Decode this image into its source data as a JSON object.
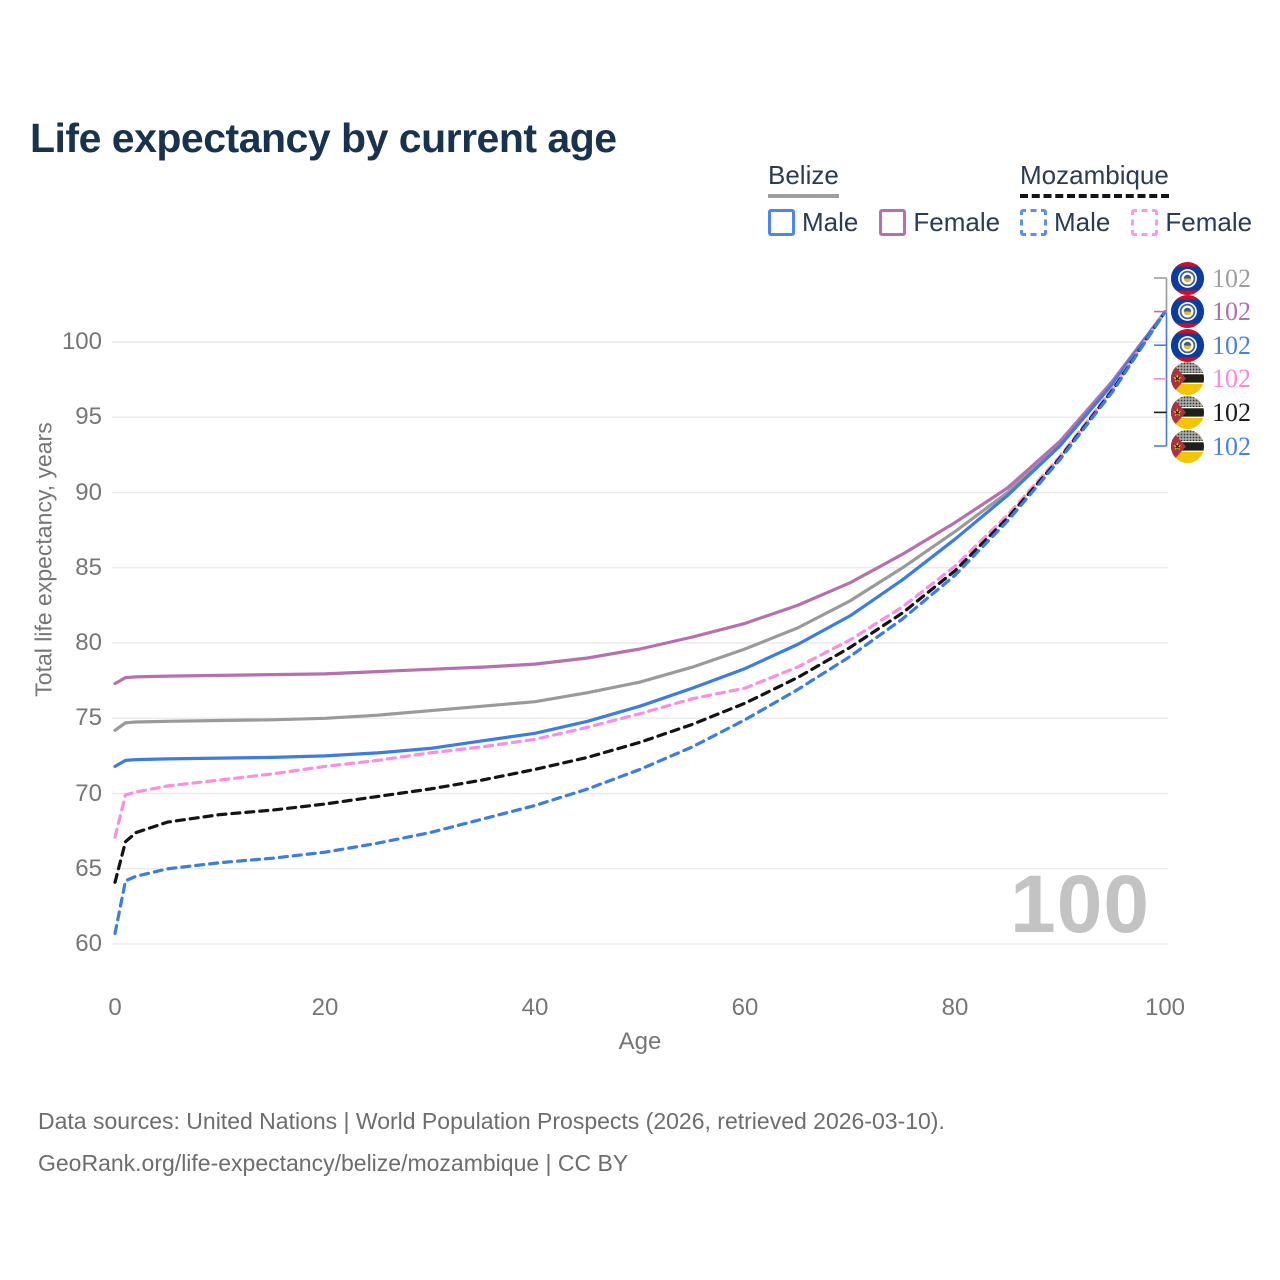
{
  "title": "Life expectancy by current age",
  "legend": {
    "groups": [
      {
        "title": "Belize",
        "underline": "solid",
        "underline_color": "#9e9e9e",
        "items": [
          {
            "label": "Male",
            "color": "#4b86e8",
            "style": "solid"
          },
          {
            "label": "Female",
            "color": "#b570ae",
            "style": "solid"
          }
        ]
      },
      {
        "title": "Mozambique",
        "underline": "dashed",
        "underline_color": "#141414",
        "items": [
          {
            "label": "Male",
            "color": "#5b8fe8",
            "style": "dashed"
          },
          {
            "label": "Female",
            "color": "#ff97e3",
            "style": "dashed"
          }
        ]
      }
    ]
  },
  "chart_data": {
    "type": "line",
    "title": "Life expectancy by current age",
    "xlabel": "Age",
    "ylabel": "Total life expectancy, years",
    "xlim": [
      0,
      100
    ],
    "ylim": [
      60,
      103
    ],
    "x_ticks": [
      0,
      20,
      40,
      60,
      80,
      100
    ],
    "y_ticks": [
      60,
      65,
      70,
      75,
      80,
      85,
      90,
      95,
      100
    ],
    "grid": "horizontal",
    "age_counter_watermark": "100",
    "series": [
      {
        "name": "Belize (both sexes)",
        "country": "Belize",
        "sex": "All",
        "color": "#9a9a9a",
        "end_label_color": "#9e9e9e",
        "line_style": "solid",
        "end_label": "102",
        "flag": "belize",
        "points": [
          [
            0,
            74.2
          ],
          [
            1,
            74.7
          ],
          [
            2,
            74.75
          ],
          [
            5,
            74.8
          ],
          [
            10,
            74.85
          ],
          [
            15,
            74.9
          ],
          [
            20,
            75.0
          ],
          [
            25,
            75.2
          ],
          [
            30,
            75.5
          ],
          [
            35,
            75.8
          ],
          [
            40,
            76.1
          ],
          [
            45,
            76.7
          ],
          [
            50,
            77.4
          ],
          [
            55,
            78.4
          ],
          [
            60,
            79.6
          ],
          [
            65,
            81.0
          ],
          [
            70,
            82.8
          ],
          [
            75,
            85.0
          ],
          [
            80,
            87.4
          ],
          [
            85,
            90.0
          ],
          [
            90,
            93.2
          ],
          [
            95,
            97.3
          ],
          [
            100,
            102
          ]
        ]
      },
      {
        "name": "Belize Female",
        "country": "Belize",
        "sex": "Female",
        "color": "#b570ae",
        "end_label_color": "#b06fb0",
        "line_style": "solid",
        "end_label": "102",
        "flag": "belize",
        "points": [
          [
            0,
            77.3
          ],
          [
            1,
            77.7
          ],
          [
            2,
            77.75
          ],
          [
            5,
            77.8
          ],
          [
            10,
            77.85
          ],
          [
            15,
            77.9
          ],
          [
            20,
            77.95
          ],
          [
            25,
            78.1
          ],
          [
            30,
            78.25
          ],
          [
            35,
            78.4
          ],
          [
            40,
            78.6
          ],
          [
            45,
            79.0
          ],
          [
            50,
            79.6
          ],
          [
            55,
            80.4
          ],
          [
            60,
            81.3
          ],
          [
            65,
            82.5
          ],
          [
            70,
            84.0
          ],
          [
            75,
            85.9
          ],
          [
            80,
            88.0
          ],
          [
            85,
            90.3
          ],
          [
            90,
            93.4
          ],
          [
            95,
            97.4
          ],
          [
            100,
            102
          ]
        ]
      },
      {
        "name": "Belize Male",
        "country": "Belize",
        "sex": "Male",
        "color": "#3d7ce0",
        "end_label_color": "#4a80e2",
        "line_style": "solid",
        "end_label": "102",
        "flag": "belize",
        "points": [
          [
            0,
            71.8
          ],
          [
            1,
            72.2
          ],
          [
            2,
            72.25
          ],
          [
            5,
            72.3
          ],
          [
            10,
            72.35
          ],
          [
            15,
            72.4
          ],
          [
            20,
            72.5
          ],
          [
            25,
            72.7
          ],
          [
            30,
            73.0
          ],
          [
            35,
            73.5
          ],
          [
            40,
            74.0
          ],
          [
            45,
            74.8
          ],
          [
            50,
            75.8
          ],
          [
            55,
            77.0
          ],
          [
            60,
            78.3
          ],
          [
            65,
            79.9
          ],
          [
            70,
            81.8
          ],
          [
            75,
            84.2
          ],
          [
            80,
            86.9
          ],
          [
            85,
            89.8
          ],
          [
            90,
            93.1
          ],
          [
            95,
            97.2
          ],
          [
            100,
            102
          ]
        ]
      },
      {
        "name": "Mozambique Female",
        "country": "Mozambique",
        "sex": "Female",
        "color": "#fb8ee0",
        "end_label_color": "#ff85dd",
        "line_style": "dashed",
        "end_label": "102",
        "flag": "mozambique",
        "points": [
          [
            0,
            67.1
          ],
          [
            1,
            69.9
          ],
          [
            2,
            70.1
          ],
          [
            5,
            70.5
          ],
          [
            10,
            70.9
          ],
          [
            15,
            71.3
          ],
          [
            20,
            71.8
          ],
          [
            25,
            72.2
          ],
          [
            30,
            72.7
          ],
          [
            35,
            73.1
          ],
          [
            40,
            73.6
          ],
          [
            45,
            74.4
          ],
          [
            50,
            75.3
          ],
          [
            55,
            76.3
          ],
          [
            60,
            77.0
          ],
          [
            65,
            78.4
          ],
          [
            70,
            80.2
          ],
          [
            75,
            82.4
          ],
          [
            80,
            85.1
          ],
          [
            85,
            88.5
          ],
          [
            90,
            92.4
          ],
          [
            95,
            96.9
          ],
          [
            100,
            102
          ]
        ]
      },
      {
        "name": "Mozambique (both sexes)",
        "country": "Mozambique",
        "sex": "All",
        "color": "#141414",
        "end_label_color": "#1a1a1a",
        "line_style": "dashed",
        "end_label": "102",
        "flag": "mozambique",
        "points": [
          [
            0,
            64.1
          ],
          [
            1,
            66.8
          ],
          [
            2,
            67.4
          ],
          [
            5,
            68.1
          ],
          [
            10,
            68.6
          ],
          [
            15,
            68.9
          ],
          [
            20,
            69.3
          ],
          [
            25,
            69.8
          ],
          [
            30,
            70.3
          ],
          [
            35,
            70.9
          ],
          [
            40,
            71.6
          ],
          [
            45,
            72.4
          ],
          [
            50,
            73.4
          ],
          [
            55,
            74.6
          ],
          [
            60,
            76.0
          ],
          [
            65,
            77.7
          ],
          [
            70,
            79.7
          ],
          [
            75,
            82.0
          ],
          [
            80,
            84.8
          ],
          [
            85,
            88.3
          ],
          [
            90,
            92.3
          ],
          [
            95,
            96.8
          ],
          [
            100,
            102
          ]
        ]
      },
      {
        "name": "Mozambique Male",
        "country": "Mozambique",
        "sex": "Male",
        "color": "#3d7ce0",
        "end_label_color": "#4a80e2",
        "line_style": "dashed",
        "end_label": "102",
        "flag": "mozambique",
        "points": [
          [
            0,
            60.7
          ],
          [
            1,
            64.2
          ],
          [
            2,
            64.5
          ],
          [
            5,
            65.0
          ],
          [
            10,
            65.4
          ],
          [
            15,
            65.7
          ],
          [
            20,
            66.1
          ],
          [
            25,
            66.7
          ],
          [
            30,
            67.4
          ],
          [
            35,
            68.3
          ],
          [
            40,
            69.2
          ],
          [
            45,
            70.3
          ],
          [
            50,
            71.6
          ],
          [
            55,
            73.1
          ],
          [
            60,
            74.9
          ],
          [
            65,
            76.9
          ],
          [
            70,
            79.1
          ],
          [
            75,
            81.6
          ],
          [
            80,
            84.5
          ],
          [
            85,
            88.1
          ],
          [
            90,
            92.2
          ],
          [
            95,
            96.7
          ],
          [
            100,
            102
          ]
        ]
      }
    ]
  },
  "footer": {
    "line1": "Data sources: United Nations | World Population Prospects (2026, retrieved 2026-03-10).",
    "line2": "GeoRank.org/life-expectancy/belize/mozambique | CC BY"
  },
  "colors": {
    "title": "#19334f",
    "legend_text": "#2b3b53",
    "axis_text": "#767676",
    "grid": "#e8e8e8",
    "footer_text": "#6d6d6d",
    "watermark": "#c3c3c3"
  }
}
